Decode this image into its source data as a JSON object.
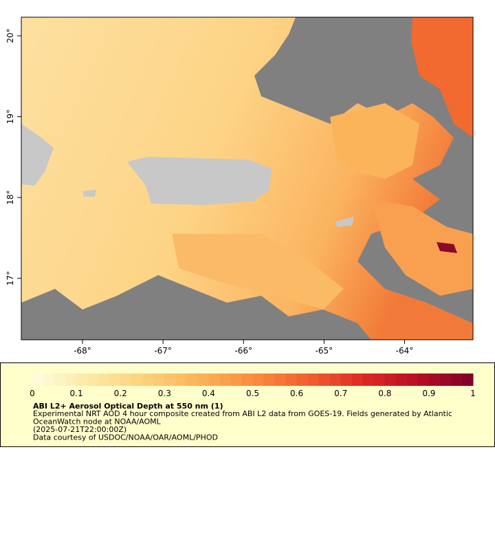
{
  "chart_data": {
    "type": "map",
    "title": "ABI L2+ Aerosol Optical Depth at 550 nm (1)",
    "description": [
      "Experimental NRT AOD 4 hour composite created from ABI L2 data from GOES-19. Fields generated by Atlantic",
      "OceanWatch node at NOAA/AOML",
      "(2025-07-21T22:00:00Z)",
      "Data courtesy of USDOC/NOAA/OAR/AOML/PHOD"
    ],
    "xlim": [
      -68.76,
      -63.15
    ],
    "ylim": [
      16.24,
      20.23
    ],
    "xticks": [
      {
        "value": -68,
        "label": "-68°"
      },
      {
        "value": -67,
        "label": "-67°"
      },
      {
        "value": -66,
        "label": "-66°"
      },
      {
        "value": -65,
        "label": "-65°"
      },
      {
        "value": -64,
        "label": "-64°"
      }
    ],
    "yticks": [
      {
        "value": 17,
        "label": "17°"
      },
      {
        "value": 18,
        "label": "18°"
      },
      {
        "value": 19,
        "label": "19°"
      },
      {
        "value": 20,
        "label": "20°"
      }
    ],
    "colorbar_lim": [
      0,
      1
    ],
    "colorbar_ticks": [
      0,
      0.1,
      0.2,
      0.3,
      0.4,
      0.5,
      0.6,
      0.7,
      0.8,
      0.9,
      1
    ],
    "colorscale": [
      "#fffde0",
      "#fde9a6",
      "#fdd27c",
      "#fcb45a",
      "#f98d3f",
      "#f2602e",
      "#dd2b23",
      "#b80d25",
      "#7c0028"
    ],
    "nodata_color": "#808080",
    "land_color": "#c8c8c8"
  }
}
